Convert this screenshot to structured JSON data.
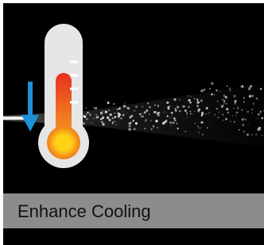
{
  "caption": "Enhance Cooling"
}
